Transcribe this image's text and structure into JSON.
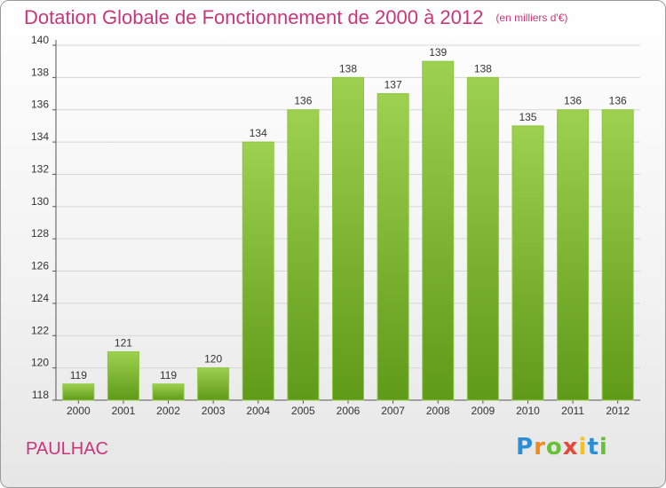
{
  "title": "Dotation Globale de Fonctionnement de 2000 à 2012",
  "unit": "(en milliers d'€)",
  "municipality": "PAULHAC",
  "logo": {
    "p": "P",
    "r": "r",
    "o": "o",
    "x": "x",
    "i1": "i",
    "t": "t",
    "i2": "i"
  },
  "colors": {
    "bar_top": "#9dd14f",
    "bar_bottom": "#5f9a18",
    "title": "#c8367a"
  },
  "chart_data": {
    "type": "bar",
    "title": "Dotation Globale de Fonctionnement de 2000 à 2012",
    "ylabel": "",
    "xlabel": "",
    "categories": [
      "2000",
      "2001",
      "2002",
      "2003",
      "2004",
      "2005",
      "2006",
      "2007",
      "2008",
      "2009",
      "2010",
      "2011",
      "2012"
    ],
    "values": [
      119,
      121,
      119,
      120,
      134,
      136,
      138,
      137,
      139,
      138,
      135,
      136,
      136
    ],
    "ylim": [
      118,
      140
    ],
    "yticks": [
      118,
      120,
      122,
      124,
      126,
      128,
      130,
      132,
      134,
      136,
      138,
      140
    ],
    "grid": true,
    "legend": "none"
  }
}
